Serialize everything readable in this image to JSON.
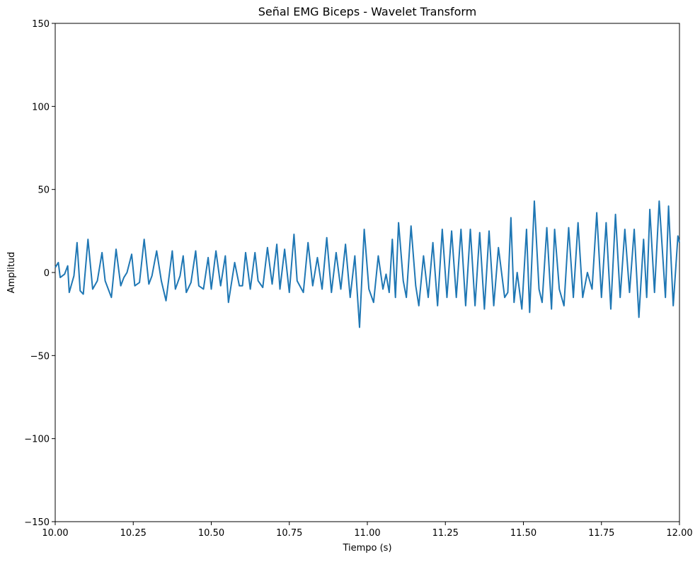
{
  "chart_data": {
    "type": "line",
    "title": "Señal EMG Biceps - Wavelet Transform",
    "xlabel": "Tiempo (s)",
    "ylabel": "Amplitud",
    "xlim": [
      10,
      12
    ],
    "ylim": [
      -150,
      150
    ],
    "xticks": [
      {
        "value": 10,
        "label": "10.00"
      },
      {
        "value": 10.25,
        "label": "10.25"
      },
      {
        "value": 10.5,
        "label": "10.50"
      },
      {
        "value": 10.75,
        "label": "10.75"
      },
      {
        "value": 11,
        "label": "11.00"
      },
      {
        "value": 11.25,
        "label": "11.25"
      },
      {
        "value": 11.5,
        "label": "11.50"
      },
      {
        "value": 11.75,
        "label": "11.75"
      },
      {
        "value": 12,
        "label": "12.00"
      }
    ],
    "yticks": [
      {
        "value": -150,
        "label": "−150"
      },
      {
        "value": -100,
        "label": "−100"
      },
      {
        "value": -50,
        "label": "−50"
      },
      0,
      50,
      100,
      150
    ],
    "grid": false,
    "x": [
      10.0,
      10.01,
      10.016,
      10.03,
      10.04,
      10.045,
      10.06,
      10.07,
      10.08,
      10.09,
      10.105,
      10.12,
      10.135,
      10.15,
      10.16,
      10.18,
      10.195,
      10.21,
      10.22,
      10.23,
      10.245,
      10.255,
      10.27,
      10.285,
      10.3,
      10.31,
      10.325,
      10.34,
      10.355,
      10.375,
      10.385,
      10.4,
      10.41,
      10.42,
      10.435,
      10.45,
      10.46,
      10.475,
      10.49,
      10.5,
      10.515,
      10.53,
      10.545,
      10.555,
      10.575,
      10.59,
      10.6,
      10.61,
      10.625,
      10.64,
      10.65,
      10.665,
      10.68,
      10.695,
      10.71,
      10.72,
      10.735,
      10.75,
      10.765,
      10.775,
      10.795,
      10.81,
      10.825,
      10.84,
      10.855,
      10.87,
      10.885,
      10.9,
      10.915,
      10.93,
      10.945,
      10.96,
      10.975,
      10.99,
      11.005,
      11.02,
      11.035,
      11.05,
      11.06,
      11.07,
      11.08,
      11.09,
      11.1,
      11.115,
      11.125,
      11.14,
      11.155,
      11.165,
      11.18,
      11.195,
      11.21,
      11.225,
      11.24,
      11.255,
      11.27,
      11.285,
      11.3,
      11.315,
      11.33,
      11.345,
      11.36,
      11.375,
      11.39,
      11.405,
      11.42,
      11.44,
      11.45,
      11.46,
      11.47,
      11.48,
      11.495,
      11.51,
      11.52,
      11.535,
      11.55,
      11.56,
      11.575,
      11.59,
      11.6,
      11.615,
      11.63,
      11.645,
      11.66,
      11.675,
      11.69,
      11.705,
      11.72,
      11.735,
      11.75,
      11.765,
      11.78,
      11.795,
      11.81,
      11.825,
      11.84,
      11.855,
      11.87,
      11.885,
      11.895,
      11.905,
      11.92,
      11.935,
      11.955,
      11.965,
      11.98,
      11.995,
      12.0
    ],
    "series": [
      {
        "name": "EMG",
        "color": "#1f77b4",
        "values": [
          3,
          6,
          -3,
          -1,
          4,
          -12,
          -2,
          18,
          -11,
          -13,
          20,
          -10,
          -5,
          12,
          -5,
          -15,
          14,
          -8,
          -3,
          0,
          11,
          -8,
          -6,
          20,
          -7,
          -2,
          13,
          -5,
          -17,
          13,
          -10,
          -2,
          10,
          -12,
          -6,
          13,
          -8,
          -10,
          9,
          -10,
          13,
          -8,
          10,
          -18,
          6,
          -8,
          -8,
          12,
          -10,
          12,
          -5,
          -9,
          15,
          -7,
          17,
          -10,
          14,
          -12,
          23,
          -5,
          -12,
          18,
          -8,
          9,
          -10,
          21,
          -12,
          12,
          -10,
          17,
          -15,
          10,
          -33,
          26,
          -10,
          -18,
          10,
          -10,
          -1,
          -12,
          20,
          -15,
          30,
          -5,
          -15,
          28,
          -8,
          -20,
          10,
          -15,
          18,
          -20,
          26,
          -15,
          25,
          -15,
          26,
          -20,
          26,
          -20,
          24,
          -22,
          25,
          -20,
          15,
          -15,
          -12,
          33,
          -18,
          0,
          -22,
          26,
          -24,
          43,
          -10,
          -18,
          27,
          -22,
          26,
          -10,
          -20,
          27,
          -15,
          30,
          -15,
          0,
          -10,
          36,
          -15,
          30,
          -22,
          35,
          -15,
          26,
          -12,
          26,
          -27,
          20,
          -15,
          38,
          -12,
          43,
          -15,
          40,
          -20,
          22,
          18
        ]
      }
    ]
  }
}
